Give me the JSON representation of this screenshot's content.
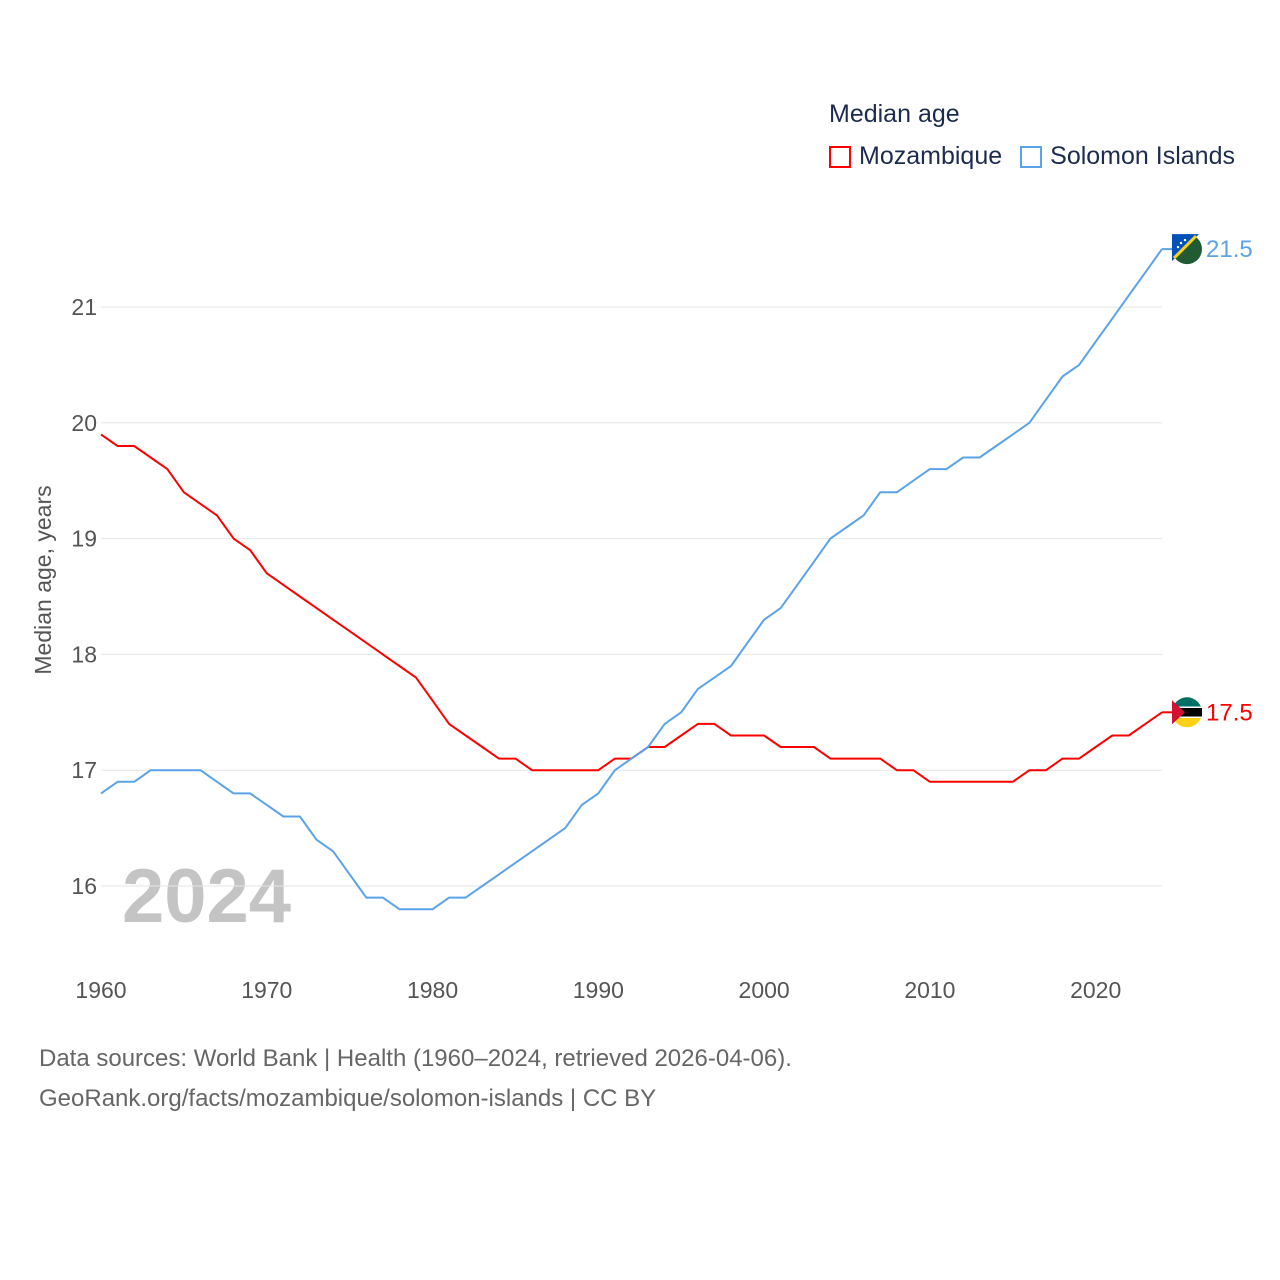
{
  "chart_data": {
    "type": "line",
    "title": "Median age",
    "xlabel": "",
    "ylabel": "Median age, years",
    "year_watermark": "2024",
    "x": [
      1960,
      1961,
      1962,
      1963,
      1964,
      1965,
      1966,
      1967,
      1968,
      1969,
      1970,
      1971,
      1972,
      1973,
      1974,
      1975,
      1976,
      1977,
      1978,
      1979,
      1980,
      1981,
      1982,
      1983,
      1984,
      1985,
      1986,
      1987,
      1988,
      1989,
      1990,
      1991,
      1992,
      1993,
      1994,
      1995,
      1996,
      1997,
      1998,
      1999,
      2000,
      2001,
      2002,
      2003,
      2004,
      2005,
      2006,
      2007,
      2008,
      2009,
      2010,
      2011,
      2012,
      2013,
      2014,
      2015,
      2016,
      2017,
      2018,
      2019,
      2020,
      2021,
      2022,
      2023,
      2024
    ],
    "series": [
      {
        "name": "Mozambique",
        "color": "#ff0000",
        "end_label": "17.5",
        "values": [
          19.9,
          19.8,
          19.8,
          19.7,
          19.6,
          19.4,
          19.3,
          19.2,
          19.0,
          18.9,
          18.7,
          18.6,
          18.5,
          18.4,
          18.3,
          18.2,
          18.1,
          18.0,
          17.9,
          17.8,
          17.6,
          17.4,
          17.3,
          17.2,
          17.1,
          17.1,
          17.0,
          17.0,
          17.0,
          17.0,
          17.0,
          17.1,
          17.1,
          17.2,
          17.2,
          17.3,
          17.4,
          17.4,
          17.3,
          17.3,
          17.3,
          17.2,
          17.2,
          17.2,
          17.1,
          17.1,
          17.1,
          17.1,
          17.0,
          17.0,
          16.9,
          16.9,
          16.9,
          16.9,
          16.9,
          16.9,
          17.0,
          17.0,
          17.1,
          17.1,
          17.2,
          17.3,
          17.3,
          17.4,
          17.5
        ]
      },
      {
        "name": "Solomon Islands",
        "color": "#5ba3e8",
        "end_label": "21.5",
        "values": [
          16.8,
          16.9,
          16.9,
          17.0,
          17.0,
          17.0,
          17.0,
          16.9,
          16.8,
          16.8,
          16.7,
          16.6,
          16.6,
          16.4,
          16.3,
          16.1,
          15.9,
          15.9,
          15.8,
          15.8,
          15.8,
          15.9,
          15.9,
          16.0,
          16.1,
          16.2,
          16.3,
          16.4,
          16.5,
          16.7,
          16.8,
          17.0,
          17.1,
          17.2,
          17.4,
          17.5,
          17.7,
          17.8,
          17.9,
          18.1,
          18.3,
          18.4,
          18.6,
          18.8,
          19.0,
          19.1,
          19.2,
          19.4,
          19.4,
          19.5,
          19.6,
          19.6,
          19.7,
          19.7,
          19.8,
          19.9,
          20.0,
          20.2,
          20.4,
          20.5,
          20.7,
          20.9,
          21.1,
          21.3,
          21.5
        ]
      }
    ],
    "y_ticks": [
      "16",
      "17",
      "18",
      "19",
      "20",
      "21"
    ],
    "x_ticks": [
      "1960",
      "1970",
      "1980",
      "1990",
      "2000",
      "2010",
      "2020"
    ],
    "xlim": [
      1960,
      2024
    ],
    "ylim": [
      15.5,
      21.5
    ],
    "grid": true,
    "legend_placement": "top-right"
  },
  "footer": {
    "line1": "Data sources: World Bank | Health (1960–2024, retrieved 2026-04-06).",
    "line2": "GeoRank.org/facts/mozambique/solomon-islands | CC BY"
  }
}
